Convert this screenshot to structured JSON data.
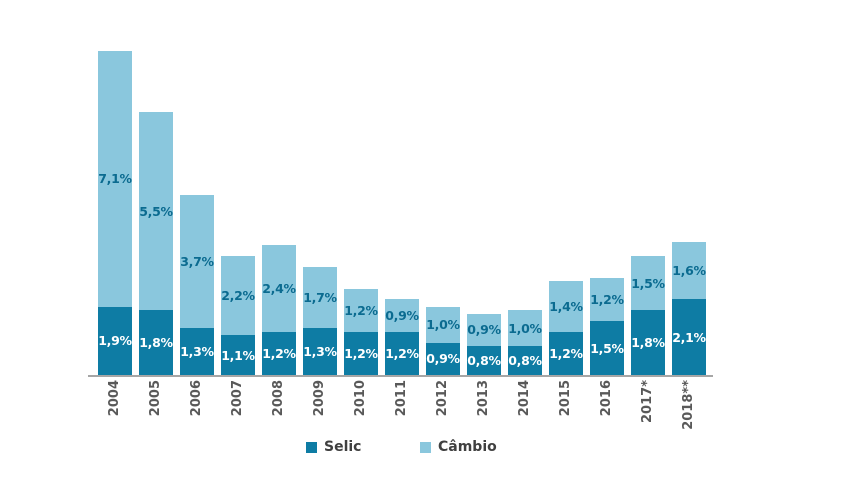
{
  "chart_data": {
    "type": "bar",
    "stacked": true,
    "title": "",
    "xlabel": "",
    "ylabel": "",
    "grid": false,
    "ylim": [
      0,
      9.5
    ],
    "categories": [
      "2004",
      "2005",
      "2006",
      "2007",
      "2008",
      "2009",
      "2010",
      "2011",
      "2012",
      "2013",
      "2014",
      "2015",
      "2016",
      "2017*",
      "2018**"
    ],
    "series": [
      {
        "name": "Selic",
        "key": "selic",
        "color": "#0E7CA4",
        "label_color": "#FFFFFF",
        "values": [
          1.9,
          1.8,
          1.3,
          1.1,
          1.2,
          1.3,
          1.2,
          1.2,
          0.9,
          0.8,
          0.8,
          1.2,
          1.5,
          1.8,
          2.1
        ],
        "labels": [
          "1,9%",
          "1,8%",
          "1,3%",
          "1,1%",
          "1,2%",
          "1,3%",
          "1,2%",
          "1,2%",
          "0,9%",
          "0,8%",
          "0,8%",
          "1,2%",
          "1,5%",
          "1,8%",
          "2,1%"
        ]
      },
      {
        "name": "Câmbio",
        "key": "cambio",
        "color": "#8AC7DD",
        "label_color": "#0B6B90",
        "values": [
          7.1,
          5.5,
          3.7,
          2.2,
          2.4,
          1.7,
          1.2,
          0.9,
          1.0,
          0.9,
          1.0,
          1.4,
          1.2,
          1.5,
          1.6
        ],
        "labels": [
          "7,1%",
          "5,5%",
          "3,7%",
          "2,2%",
          "2,4%",
          "1,7%",
          "1,2%",
          "0,9%",
          "1,0%",
          "0,9%",
          "1,0%",
          "1,4%",
          "1,2%",
          "1,5%",
          "1,6%"
        ]
      }
    ],
    "legend": {
      "position": "bottom",
      "items": [
        "Selic",
        "Câmbio"
      ]
    },
    "axis_color": "#A6A6A6",
    "year_label_color": "#595959",
    "legend_text_color": "#404040"
  }
}
